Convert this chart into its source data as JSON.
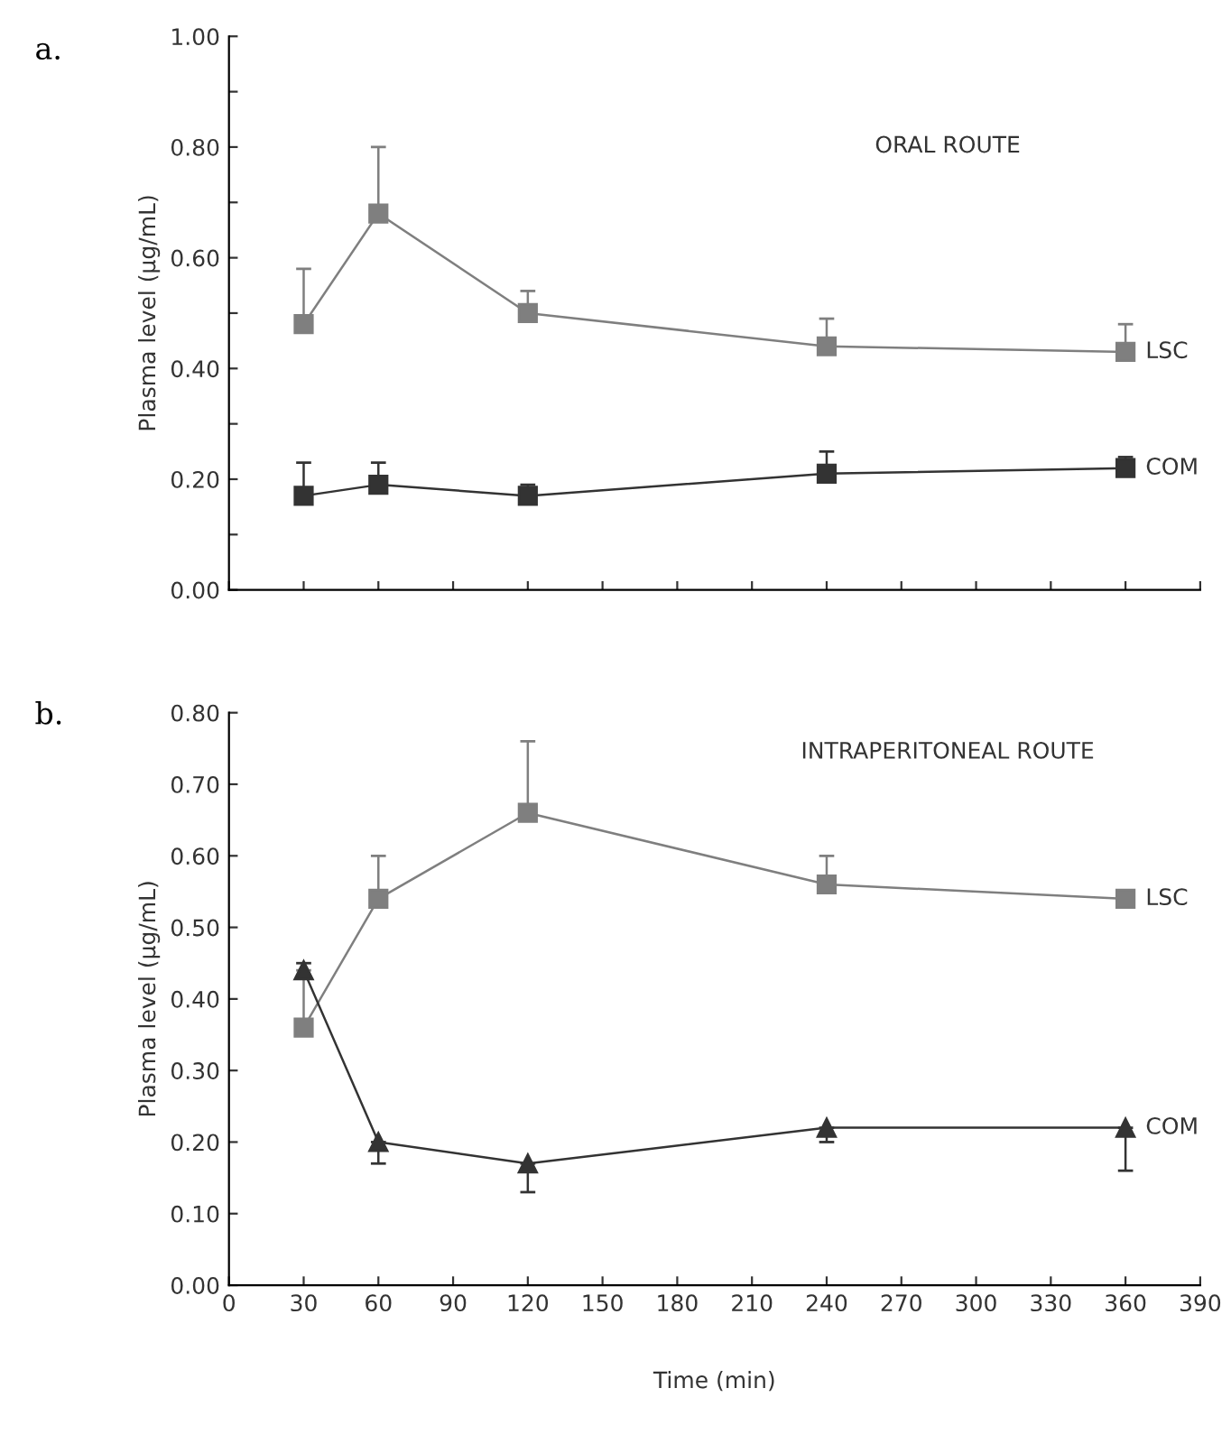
{
  "chart_data": [
    {
      "type": "line",
      "title": "ORAL ROUTE",
      "ylabel": "Plasma level (µg/mL)",
      "annotations": [
        "a."
      ],
      "legend": "right",
      "grid": false,
      "tick_labels": "y",
      "x": [
        30,
        60,
        120,
        240,
        360
      ],
      "xlim": [
        0,
        390
      ],
      "xticks": [
        {
          "value": 0,
          "label": null
        },
        {
          "value": 30,
          "label": null
        },
        {
          "value": 60,
          "label": null
        },
        {
          "value": 90,
          "label": null
        },
        {
          "value": 120,
          "label": null
        },
        {
          "value": 150,
          "label": null
        },
        {
          "value": 180,
          "label": null
        },
        {
          "value": 210,
          "label": null
        },
        {
          "value": 240,
          "label": null
        },
        {
          "value": 270,
          "label": null
        },
        {
          "value": 300,
          "label": null
        },
        {
          "value": 330,
          "label": null
        },
        {
          "value": 360,
          "label": null
        },
        {
          "value": 390,
          "label": null
        }
      ],
      "ylim": [
        0,
        1.0
      ],
      "yticks": [
        {
          "value": 0,
          "label": "0.00"
        },
        {
          "value": 0.1,
          "label": null
        },
        {
          "value": 0.2,
          "label": "0.20"
        },
        {
          "value": 0.3,
          "label": null
        },
        {
          "value": 0.4,
          "label": "0.40"
        },
        {
          "value": 0.5,
          "label": null
        },
        {
          "value": 0.6,
          "label": "0.60"
        },
        {
          "value": 0.7,
          "label": null
        },
        {
          "value": 0.8,
          "label": "0.80"
        },
        {
          "value": 0.9,
          "label": null
        },
        {
          "value": 1.0,
          "label": "1.00"
        }
      ],
      "series": [
        {
          "name": "LSC",
          "color": "#7f7f7f",
          "marker": "square",
          "values": [
            0.48,
            0.68,
            0.5,
            0.44,
            0.43
          ],
          "errors": [
            [
              0.48,
              0.58
            ],
            [
              0.68,
              0.8
            ],
            [
              0.5,
              0.54
            ],
            [
              0.44,
              0.49
            ],
            [
              0.43,
              0.48
            ]
          ]
        },
        {
          "name": "COM",
          "color": "#333333",
          "marker": "square",
          "values": [
            0.17,
            0.19,
            0.17,
            0.21,
            0.22
          ],
          "errors": [
            [
              0.17,
              0.23
            ],
            [
              0.19,
              0.23
            ],
            [
              0.17,
              0.19
            ],
            [
              0.21,
              0.25
            ],
            [
              0.22,
              0.24
            ]
          ]
        }
      ]
    },
    {
      "type": "line",
      "title": "INTRAPERITONEAL ROUTE",
      "ylabel": "Plasma level (µg/mL)",
      "xlabel": "Time (min)",
      "annotations": [
        "b."
      ],
      "legend": "right",
      "grid": false,
      "x": [
        30,
        60,
        120,
        240,
        360
      ],
      "xlim": [
        0,
        390
      ],
      "xticks": [
        0,
        30,
        60,
        90,
        120,
        150,
        180,
        210,
        240,
        270,
        300,
        330,
        360,
        390
      ],
      "ylim": [
        0,
        0.8
      ],
      "yticks": [
        {
          "value": 0,
          "label": "0.00"
        },
        {
          "value": 0.1,
          "label": "0.10"
        },
        {
          "value": 0.2,
          "label": "0.20"
        },
        {
          "value": 0.3,
          "label": "0.30"
        },
        {
          "value": 0.4,
          "label": "0.40"
        },
        {
          "value": 0.5,
          "label": "0.50"
        },
        {
          "value": 0.6,
          "label": "0.60"
        },
        {
          "value": 0.7,
          "label": "0.70"
        },
        {
          "value": 0.8,
          "label": "0.80"
        }
      ],
      "series": [
        {
          "name": "LSC",
          "color": "#7f7f7f",
          "marker": "square",
          "values": [
            0.36,
            0.54,
            0.66,
            0.56,
            0.54
          ],
          "errors": [
            [
              0.36,
              0.44
            ],
            [
              0.54,
              0.6
            ],
            [
              0.66,
              0.76
            ],
            [
              0.56,
              0.6
            ],
            null
          ]
        },
        {
          "name": "COM",
          "color": "#333333",
          "marker": "triangle",
          "values": [
            0.44,
            0.2,
            0.17,
            0.22,
            0.22
          ],
          "errors": [
            0.01,
            [
              0.17,
              0.2
            ],
            [
              0.13,
              0.17
            ],
            [
              0.2,
              0.22
            ],
            [
              0.16,
              0.22
            ]
          ]
        }
      ]
    }
  ]
}
